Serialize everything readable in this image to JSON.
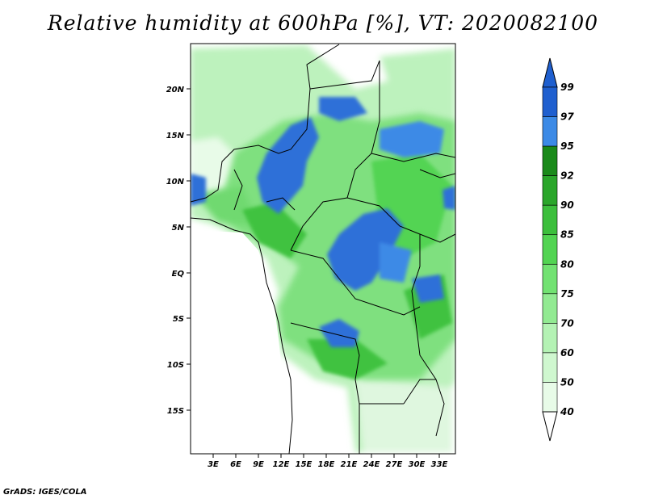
{
  "title": "Relative humidity at 600hPa [%], VT: 2020082100",
  "credit": "GrADS: IGES/COLA",
  "axes": {
    "lat_ticks": [
      "20N",
      "15N",
      "10N",
      "5N",
      "EQ",
      "5S",
      "10S",
      "15S"
    ],
    "lon_ticks": [
      "3E",
      "6E",
      "9E",
      "12E",
      "15E",
      "18E",
      "21E",
      "24E",
      "27E",
      "30E",
      "33E"
    ]
  },
  "colorbar": {
    "labels": [
      "99",
      "97",
      "95",
      "92",
      "90",
      "85",
      "80",
      "75",
      "70",
      "60",
      "50",
      "40"
    ],
    "colors": [
      "#1f5fcf",
      "#3c8ae6",
      "#1a8a1a",
      "#2aa62a",
      "#3cbf3c",
      "#52d452",
      "#72e272",
      "#92ea92",
      "#b4f2b4",
      "#cff7cf",
      "#e8fbe8"
    ]
  },
  "field_colors": {
    "land_none": "#ffffff",
    "humid_blue": "#2f6fd8",
    "humid_blue_light": "#4a8fe8",
    "green_light": "#bdf2bd",
    "green_mid": "#7fe07f",
    "green_dark": "#3fc23f"
  }
}
